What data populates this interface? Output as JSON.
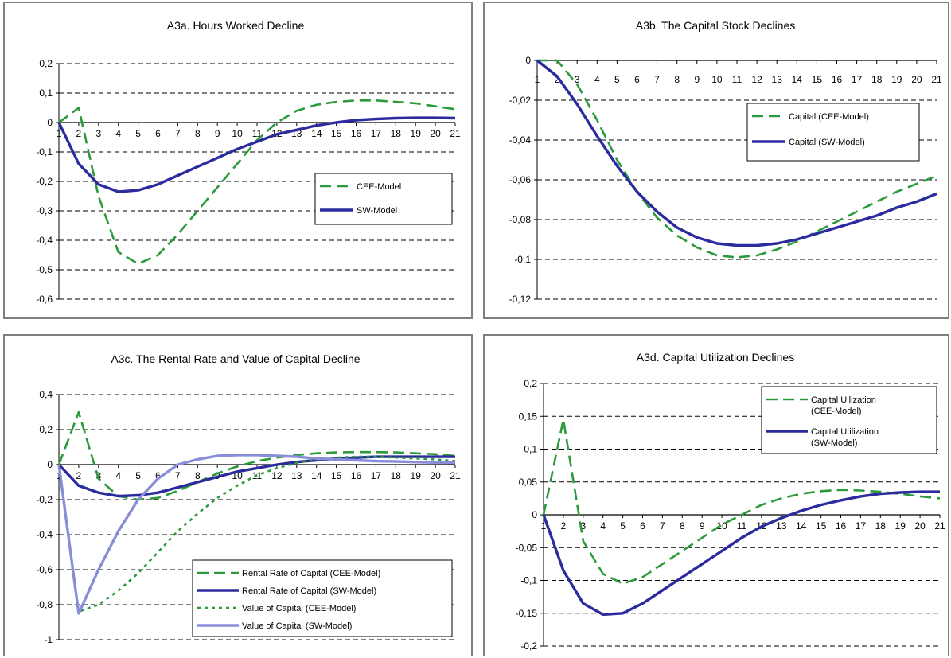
{
  "chart_data": [
    {
      "type": "line",
      "title": "A3a. Hours Worked Decline",
      "x": [
        1,
        2,
        3,
        4,
        5,
        6,
        7,
        8,
        9,
        10,
        11,
        12,
        13,
        14,
        15,
        16,
        17,
        18,
        19,
        20,
        21
      ],
      "ylim": [
        -0.6,
        0.2
      ],
      "yticks": [
        0.2,
        0.1,
        0,
        -0.1,
        -0.2,
        -0.3,
        -0.4,
        -0.5,
        -0.6
      ],
      "ytick_labels": [
        "0,2",
        "0,1",
        "0",
        "-0,1",
        "-0,2",
        "-0,3",
        "-0,4",
        "-0,5",
        "-0,6"
      ],
      "grid": true,
      "legend": "right",
      "series": [
        {
          "name": "CEE-Model",
          "style": "dashed",
          "color": "#2a9a3a",
          "values": [
            0,
            0.05,
            -0.25,
            -0.44,
            -0.48,
            -0.45,
            -0.38,
            -0.3,
            -0.22,
            -0.14,
            -0.06,
            0.0,
            0.04,
            0.06,
            0.07,
            0.075,
            0.075,
            0.07,
            0.065,
            0.055,
            0.045
          ]
        },
        {
          "name": "SW-Model",
          "style": "solid",
          "color": "#2b2b9e",
          "values": [
            0,
            -0.14,
            -0.21,
            -0.235,
            -0.23,
            -0.21,
            -0.18,
            -0.15,
            -0.12,
            -0.09,
            -0.065,
            -0.04,
            -0.025,
            -0.01,
            0.0,
            0.008,
            0.012,
            0.015,
            0.016,
            0.016,
            0.015
          ]
        }
      ]
    },
    {
      "type": "line",
      "title": "A3b.  The Capital Stock Declines",
      "x": [
        1,
        2,
        3,
        4,
        5,
        6,
        7,
        8,
        9,
        10,
        11,
        12,
        13,
        14,
        15,
        16,
        17,
        18,
        19,
        20,
        21
      ],
      "ylim": [
        -0.12,
        0
      ],
      "yticks": [
        0,
        -0.02,
        -0.04,
        -0.06,
        -0.08,
        -0.1,
        -0.12
      ],
      "ytick_labels": [
        "0",
        "-0,02",
        "-0,04",
        "-0,06",
        "-0,08",
        "-0,1",
        "-0,12"
      ],
      "grid": true,
      "legend": "top-right",
      "series": [
        {
          "name": "Capital (CEE-Model)",
          "style": "dashed",
          "color": "#2a9a3a",
          "values": [
            0,
            0.0,
            -0.012,
            -0.03,
            -0.05,
            -0.066,
            -0.079,
            -0.088,
            -0.094,
            -0.098,
            -0.099,
            -0.098,
            -0.095,
            -0.091,
            -0.086,
            -0.081,
            -0.076,
            -0.071,
            -0.066,
            -0.062,
            -0.058
          ]
        },
        {
          "name": "Capital (SW-Model)",
          "style": "solid",
          "color": "#2b2b9e",
          "values": [
            0,
            -0.008,
            -0.022,
            -0.038,
            -0.053,
            -0.066,
            -0.076,
            -0.084,
            -0.089,
            -0.092,
            -0.093,
            -0.093,
            -0.092,
            -0.09,
            -0.087,
            -0.084,
            -0.081,
            -0.078,
            -0.074,
            -0.071,
            -0.067
          ]
        }
      ]
    },
    {
      "type": "line",
      "title": "A3c.  The Rental Rate and Value of Capital  Decline",
      "x": [
        1,
        2,
        3,
        4,
        5,
        6,
        7,
        8,
        9,
        10,
        11,
        12,
        13,
        14,
        15,
        16,
        17,
        18,
        19,
        20,
        21
      ],
      "ylim": [
        -1,
        0.4
      ],
      "yticks": [
        0.4,
        0.2,
        0,
        -0.2,
        -0.4,
        -0.6,
        -0.8,
        -1
      ],
      "ytick_labels": [
        "0,4",
        "0,2",
        "0",
        "-0,2",
        "-0,4",
        "-0,6",
        "-0,8",
        "-1"
      ],
      "grid": true,
      "legend": "bottom-right",
      "series": [
        {
          "name": "Rental Rate of Capital (CEE-Model)",
          "style": "dashed",
          "color": "#2a9a3a",
          "values": [
            0,
            0.3,
            -0.08,
            -0.18,
            -0.2,
            -0.19,
            -0.15,
            -0.1,
            -0.05,
            -0.01,
            0.02,
            0.04,
            0.055,
            0.065,
            0.07,
            0.072,
            0.072,
            0.07,
            0.065,
            0.06,
            0.05
          ]
        },
        {
          "name": "Rental Rate of Capital (SW-Model)",
          "style": "solid",
          "color": "#2b2b9e",
          "values": [
            0,
            -0.12,
            -0.16,
            -0.18,
            -0.175,
            -0.16,
            -0.13,
            -0.1,
            -0.07,
            -0.04,
            -0.02,
            0.0,
            0.015,
            0.025,
            0.035,
            0.04,
            0.045,
            0.045,
            0.045,
            0.045,
            0.045
          ]
        },
        {
          "name": "Value of Capital (CEE-Model)",
          "style": "dotted",
          "color": "#2a9a3a",
          "values": [
            0,
            -0.84,
            -0.8,
            -0.72,
            -0.62,
            -0.5,
            -0.38,
            -0.28,
            -0.19,
            -0.12,
            -0.06,
            -0.02,
            0.01,
            0.03,
            0.04,
            0.045,
            0.045,
            0.04,
            0.035,
            0.03,
            0.02
          ]
        },
        {
          "name": "Value of Capital (SW-Model)",
          "style": "solid",
          "color": "#8a8ed8",
          "values": [
            0,
            -0.85,
            -0.6,
            -0.38,
            -0.2,
            -0.08,
            0.0,
            0.03,
            0.05,
            0.055,
            0.055,
            0.05,
            0.045,
            0.035,
            0.03,
            0.025,
            0.02,
            0.018,
            0.015,
            0.012,
            0.01
          ]
        }
      ]
    },
    {
      "type": "line",
      "title": "A3d.  Capital Utilization Declines",
      "x": [
        1,
        2,
        3,
        4,
        5,
        6,
        7,
        8,
        9,
        10,
        11,
        12,
        13,
        14,
        15,
        16,
        17,
        18,
        19,
        20,
        21
      ],
      "ylim": [
        -0.2,
        0.2
      ],
      "yticks": [
        0.2,
        0.15,
        0.1,
        0.05,
        0,
        -0.05,
        -0.1,
        -0.15,
        -0.2
      ],
      "ytick_labels": [
        "0,2",
        "0,15",
        "0,1",
        "0,05",
        "0",
        "-0,05",
        "-0,1",
        "-0,15",
        "-0,2"
      ],
      "grid": true,
      "legend": "top-right",
      "series": [
        {
          "name": "Capital Uilization (CEE-Model)",
          "style": "dashed",
          "color": "#2a9a3a",
          "values": [
            0,
            0.145,
            -0.04,
            -0.09,
            -0.105,
            -0.095,
            -0.075,
            -0.055,
            -0.035,
            -0.015,
            0.0,
            0.015,
            0.025,
            0.032,
            0.036,
            0.038,
            0.037,
            0.035,
            0.032,
            0.028,
            0.025
          ]
        },
        {
          "name": "Capital Utilization (SW-Model)",
          "style": "solid",
          "color": "#2b2b9e",
          "values": [
            0,
            -0.085,
            -0.135,
            -0.152,
            -0.15,
            -0.135,
            -0.115,
            -0.095,
            -0.075,
            -0.055,
            -0.035,
            -0.018,
            -0.005,
            0.006,
            0.015,
            0.022,
            0.028,
            0.032,
            0.034,
            0.035,
            0.035
          ]
        }
      ]
    }
  ]
}
